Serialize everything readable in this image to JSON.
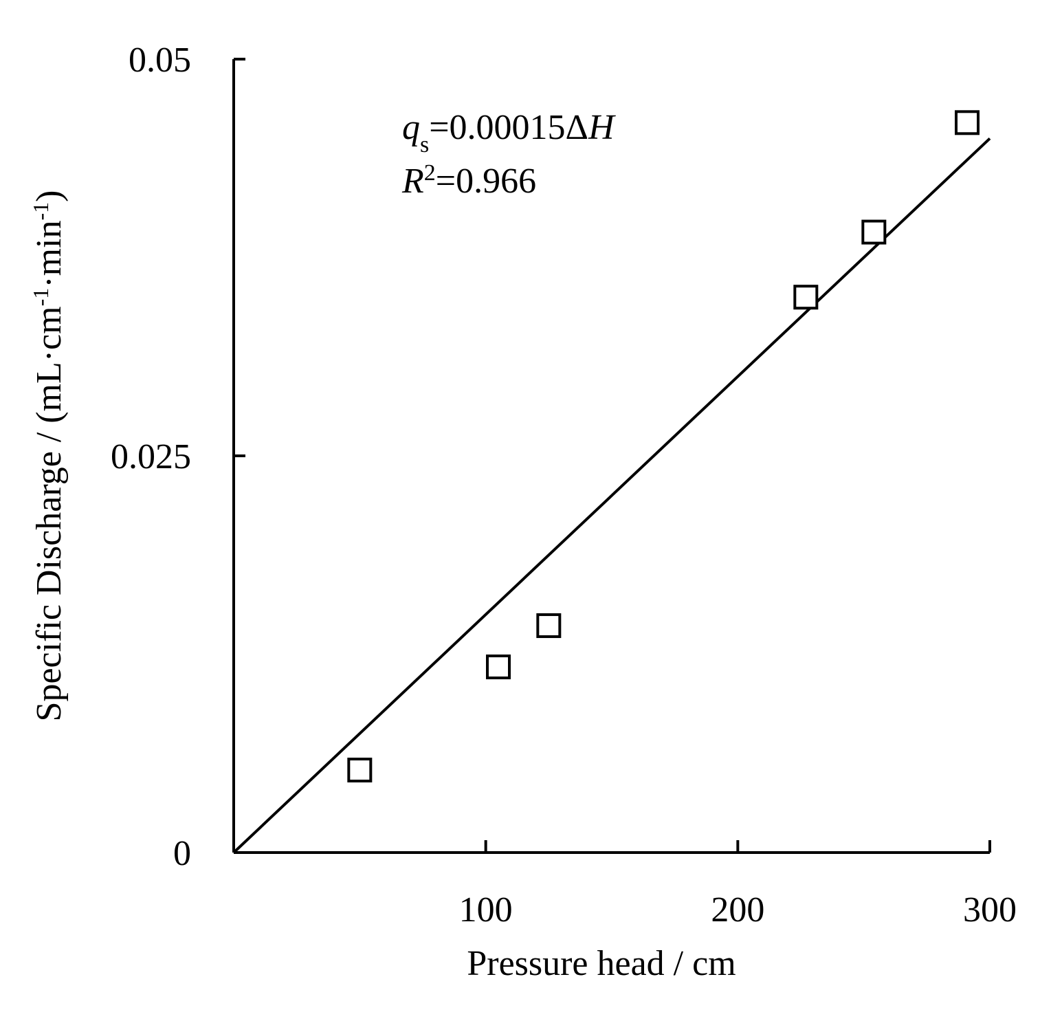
{
  "chart_data": {
    "type": "scatter",
    "xlabel": "Pressure head / cm",
    "ylabel": [
      "Specific Discharge / (mL·cm",
      "-1",
      "·min",
      "-1",
      ")"
    ],
    "equation": [
      "q",
      "s",
      "=0.00015Δ",
      "H"
    ],
    "r_squared": [
      "R",
      "2",
      "=0.966"
    ],
    "x": [
      50,
      105,
      125,
      227,
      254,
      291
    ],
    "values": [
      0.0052,
      0.0117,
      0.0143,
      0.035,
      0.0391,
      0.046
    ],
    "fit": {
      "x": [
        0,
        300
      ],
      "values": [
        0,
        0.045
      ]
    },
    "color": "#000000",
    "xlim": [
      0,
      300
    ],
    "ylim": [
      0,
      0.05
    ],
    "xticks": [
      100,
      200,
      300
    ],
    "yticks": [
      0,
      0.025,
      0.05
    ]
  }
}
